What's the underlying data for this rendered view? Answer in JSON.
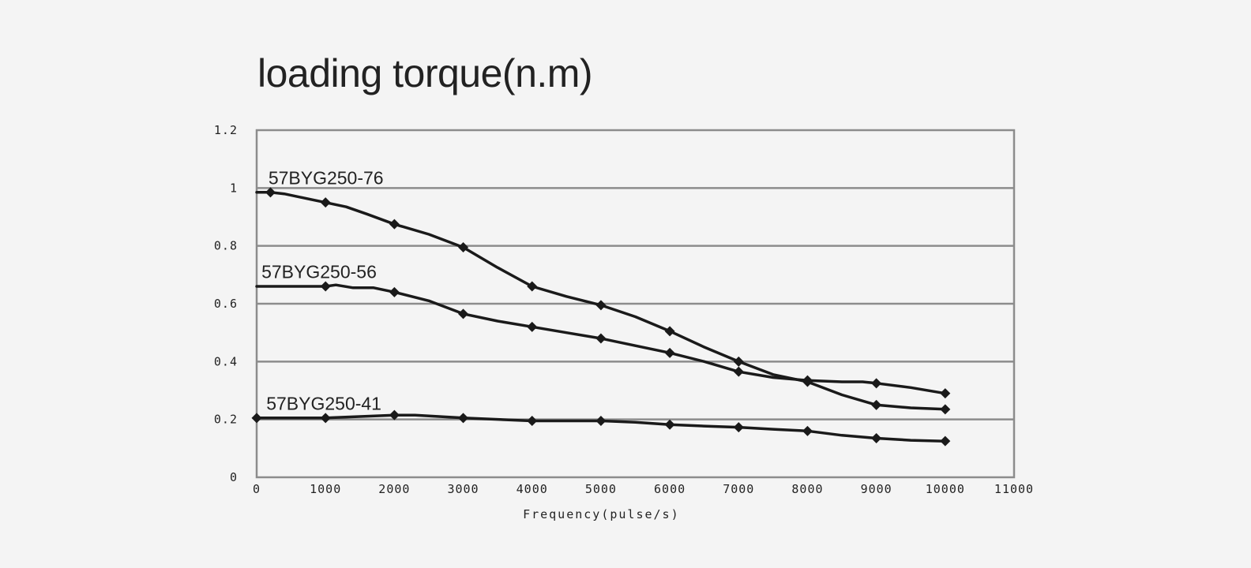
{
  "chart_data": {
    "type": "line",
    "title": "loading torque(n.m)",
    "xlabel": "Frequency(pulse/s)",
    "ylabel": "",
    "xlim": [
      0,
      11000
    ],
    "ylim": [
      0,
      1.2
    ],
    "x_ticks": [
      0,
      1000,
      2000,
      3000,
      4000,
      5000,
      6000,
      7000,
      8000,
      9000,
      10000,
      11000
    ],
    "x_tick_labels": [
      "0",
      "1000",
      "2000",
      "3000",
      "4000",
      "5000",
      "6000",
      "7000",
      "8000",
      "9000",
      "10000",
      "11000"
    ],
    "y_ticks": [
      0,
      0.2,
      0.4,
      0.6,
      0.8,
      1,
      1.2
    ],
    "y_tick_labels": [
      "0",
      "0.2",
      "0.4",
      "0.6",
      "0.8",
      "1",
      "1.2"
    ],
    "grid": "horizontal",
    "series": [
      {
        "name": "57BYG250-76",
        "line": [
          [
            0,
            0.985
          ],
          [
            200,
            0.985
          ],
          [
            400,
            0.98
          ],
          [
            700,
            0.965
          ],
          [
            1000,
            0.95
          ],
          [
            1300,
            0.935
          ],
          [
            1600,
            0.91
          ],
          [
            2000,
            0.875
          ],
          [
            2500,
            0.84
          ],
          [
            3000,
            0.795
          ],
          [
            3500,
            0.725
          ],
          [
            4000,
            0.66
          ],
          [
            4500,
            0.625
          ],
          [
            5000,
            0.595
          ],
          [
            5500,
            0.555
          ],
          [
            6000,
            0.505
          ],
          [
            6500,
            0.45
          ],
          [
            7000,
            0.4
          ],
          [
            7500,
            0.355
          ],
          [
            8000,
            0.33
          ],
          [
            8500,
            0.285
          ],
          [
            9000,
            0.25
          ],
          [
            9500,
            0.24
          ],
          [
            10000,
            0.235
          ]
        ],
        "markers": [
          [
            200,
            0.985
          ],
          [
            1000,
            0.95
          ],
          [
            2000,
            0.875
          ],
          [
            3000,
            0.795
          ],
          [
            4000,
            0.66
          ],
          [
            5000,
            0.595
          ],
          [
            6000,
            0.505
          ],
          [
            7000,
            0.4
          ],
          [
            8000,
            0.33
          ],
          [
            9000,
            0.25
          ],
          [
            10000,
            0.235
          ]
        ],
        "label_at": [
          170,
          1.035
        ]
      },
      {
        "name": "57BYG250-56",
        "line": [
          [
            0,
            0.66
          ],
          [
            500,
            0.66
          ],
          [
            1000,
            0.66
          ],
          [
            1150,
            0.665
          ],
          [
            1400,
            0.655
          ],
          [
            1700,
            0.655
          ],
          [
            2000,
            0.64
          ],
          [
            2500,
            0.61
          ],
          [
            3000,
            0.565
          ],
          [
            3500,
            0.54
          ],
          [
            4000,
            0.52
          ],
          [
            4500,
            0.5
          ],
          [
            5000,
            0.48
          ],
          [
            5500,
            0.455
          ],
          [
            6000,
            0.43
          ],
          [
            6500,
            0.4
          ],
          [
            7000,
            0.365
          ],
          [
            7500,
            0.345
          ],
          [
            8000,
            0.335
          ],
          [
            8500,
            0.33
          ],
          [
            8800,
            0.33
          ],
          [
            9000,
            0.325
          ],
          [
            9500,
            0.31
          ],
          [
            10000,
            0.29
          ]
        ],
        "markers": [
          [
            1000,
            0.66
          ],
          [
            2000,
            0.64
          ],
          [
            3000,
            0.565
          ],
          [
            4000,
            0.52
          ],
          [
            5000,
            0.48
          ],
          [
            6000,
            0.43
          ],
          [
            7000,
            0.365
          ],
          [
            8000,
            0.335
          ],
          [
            9000,
            0.325
          ],
          [
            10000,
            0.29
          ]
        ],
        "label_at": [
          70,
          0.71
        ]
      },
      {
        "name": "57BYG250-41",
        "line": [
          [
            0,
            0.205
          ],
          [
            1000,
            0.205
          ],
          [
            1500,
            0.21
          ],
          [
            2000,
            0.215
          ],
          [
            2300,
            0.215
          ],
          [
            3000,
            0.205
          ],
          [
            4000,
            0.195
          ],
          [
            5000,
            0.195
          ],
          [
            5500,
            0.19
          ],
          [
            6000,
            0.182
          ],
          [
            6500,
            0.177
          ],
          [
            7000,
            0.173
          ],
          [
            7500,
            0.166
          ],
          [
            8000,
            0.16
          ],
          [
            8500,
            0.145
          ],
          [
            9000,
            0.135
          ],
          [
            9500,
            0.128
          ],
          [
            10000,
            0.125
          ]
        ],
        "markers": [
          [
            0,
            0.205
          ],
          [
            1000,
            0.205
          ],
          [
            2000,
            0.215
          ],
          [
            3000,
            0.205
          ],
          [
            4000,
            0.195
          ],
          [
            5000,
            0.195
          ],
          [
            6000,
            0.182
          ],
          [
            7000,
            0.173
          ],
          [
            8000,
            0.16
          ],
          [
            9000,
            0.135
          ],
          [
            10000,
            0.125
          ]
        ],
        "label_at": [
          140,
          0.255
        ]
      }
    ],
    "colors": {
      "grid": "#8c8c8c",
      "line": "#1a1a1a",
      "text": "#222222"
    }
  }
}
